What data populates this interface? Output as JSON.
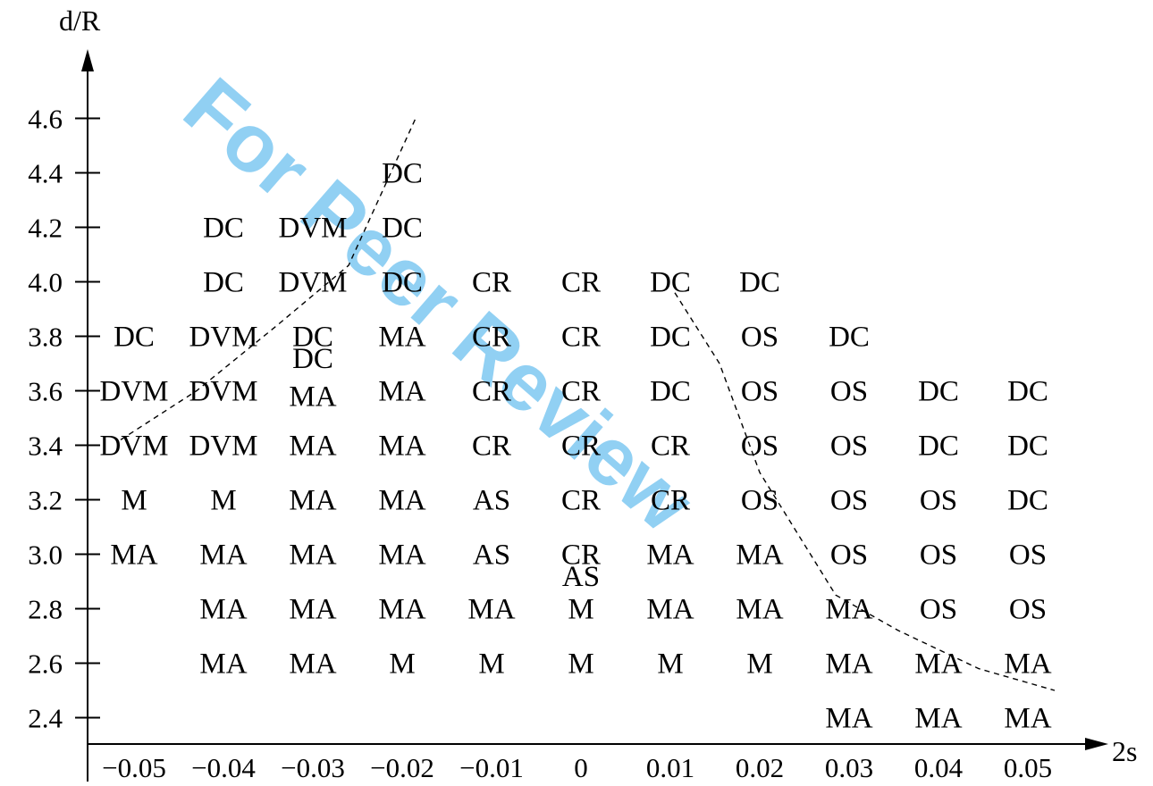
{
  "watermark": {
    "text": "For Peer Review",
    "color": "#7ec8f2"
  },
  "chart_data": {
    "type": "scatter",
    "xlabel": "2s",
    "ylabel": "d/R",
    "x_ticks": [
      "−0.05",
      "−0.04",
      "−0.03",
      "−0.02",
      "−0.01",
      "0",
      "0.01",
      "0.02",
      "0.03",
      "0.04",
      "0.05"
    ],
    "y_ticks": [
      "2.4",
      "2.6",
      "2.8",
      "3.0",
      "3.2",
      "3.4",
      "3.6",
      "3.8",
      "4.0",
      "4.2",
      "4.4",
      "4.6"
    ],
    "xlim": [
      -0.05,
      0.05
    ],
    "ylim": [
      2.3,
      4.7
    ],
    "grid": false,
    "points": [
      {
        "x": -0.05,
        "y": 3.8,
        "label": "DC"
      },
      {
        "x": -0.05,
        "y": 3.6,
        "label": "DVM"
      },
      {
        "x": -0.05,
        "y": 3.4,
        "label": "DVM"
      },
      {
        "x": -0.05,
        "y": 3.2,
        "label": "M"
      },
      {
        "x": -0.05,
        "y": 3.0,
        "label": "MA"
      },
      {
        "x": -0.04,
        "y": 4.2,
        "label": "DC"
      },
      {
        "x": -0.04,
        "y": 4.0,
        "label": "DC"
      },
      {
        "x": -0.04,
        "y": 3.8,
        "label": "DVM"
      },
      {
        "x": -0.04,
        "y": 3.6,
        "label": "DVM"
      },
      {
        "x": -0.04,
        "y": 3.4,
        "label": "DVM"
      },
      {
        "x": -0.04,
        "y": 3.2,
        "label": "M"
      },
      {
        "x": -0.04,
        "y": 3.0,
        "label": "MA"
      },
      {
        "x": -0.04,
        "y": 2.8,
        "label": "MA"
      },
      {
        "x": -0.04,
        "y": 2.6,
        "label": "MA"
      },
      {
        "x": -0.03,
        "y": 4.2,
        "label": "DVM"
      },
      {
        "x": -0.03,
        "y": 4.0,
        "label": "DVM"
      },
      {
        "x": -0.03,
        "y": 3.8,
        "label": "DC"
      },
      {
        "x": -0.03,
        "y": 3.72,
        "label": "DC"
      },
      {
        "x": -0.03,
        "y": 3.58,
        "label": "MA"
      },
      {
        "x": -0.03,
        "y": 3.4,
        "label": "MA"
      },
      {
        "x": -0.03,
        "y": 3.2,
        "label": "MA"
      },
      {
        "x": -0.03,
        "y": 3.0,
        "label": "MA"
      },
      {
        "x": -0.03,
        "y": 2.8,
        "label": "MA"
      },
      {
        "x": -0.03,
        "y": 2.6,
        "label": "MA"
      },
      {
        "x": -0.02,
        "y": 4.4,
        "label": "DC"
      },
      {
        "x": -0.02,
        "y": 4.2,
        "label": "DC"
      },
      {
        "x": -0.02,
        "y": 4.0,
        "label": "DC"
      },
      {
        "x": -0.02,
        "y": 3.8,
        "label": "MA"
      },
      {
        "x": -0.02,
        "y": 3.6,
        "label": "MA"
      },
      {
        "x": -0.02,
        "y": 3.4,
        "label": "MA"
      },
      {
        "x": -0.02,
        "y": 3.2,
        "label": "MA"
      },
      {
        "x": -0.02,
        "y": 3.0,
        "label": "MA"
      },
      {
        "x": -0.02,
        "y": 2.8,
        "label": "MA"
      },
      {
        "x": -0.02,
        "y": 2.6,
        "label": "M"
      },
      {
        "x": -0.01,
        "y": 4.0,
        "label": "CR"
      },
      {
        "x": -0.01,
        "y": 3.8,
        "label": "CR"
      },
      {
        "x": -0.01,
        "y": 3.6,
        "label": "CR"
      },
      {
        "x": -0.01,
        "y": 3.4,
        "label": "CR"
      },
      {
        "x": -0.01,
        "y": 3.2,
        "label": "AS"
      },
      {
        "x": -0.01,
        "y": 3.0,
        "label": "AS"
      },
      {
        "x": -0.01,
        "y": 2.8,
        "label": "MA"
      },
      {
        "x": -0.01,
        "y": 2.6,
        "label": "M"
      },
      {
        "x": 0,
        "y": 4.0,
        "label": "CR"
      },
      {
        "x": 0,
        "y": 3.8,
        "label": "CR"
      },
      {
        "x": 0,
        "y": 3.6,
        "label": "CR"
      },
      {
        "x": 0,
        "y": 3.4,
        "label": "CR"
      },
      {
        "x": 0,
        "y": 3.2,
        "label": "CR"
      },
      {
        "x": 0,
        "y": 3.0,
        "label": "CR"
      },
      {
        "x": 0,
        "y": 2.92,
        "label": "AS"
      },
      {
        "x": 0,
        "y": 2.8,
        "label": "M"
      },
      {
        "x": 0,
        "y": 2.6,
        "label": "M"
      },
      {
        "x": 0.01,
        "y": 4.0,
        "label": "DC"
      },
      {
        "x": 0.01,
        "y": 3.8,
        "label": "DC"
      },
      {
        "x": 0.01,
        "y": 3.6,
        "label": "DC"
      },
      {
        "x": 0.01,
        "y": 3.4,
        "label": "CR"
      },
      {
        "x": 0.01,
        "y": 3.2,
        "label": "CR"
      },
      {
        "x": 0.01,
        "y": 3.0,
        "label": "MA"
      },
      {
        "x": 0.01,
        "y": 2.8,
        "label": "MA"
      },
      {
        "x": 0.01,
        "y": 2.6,
        "label": "M"
      },
      {
        "x": 0.02,
        "y": 4.0,
        "label": "DC"
      },
      {
        "x": 0.02,
        "y": 3.8,
        "label": "OS"
      },
      {
        "x": 0.02,
        "y": 3.6,
        "label": "OS"
      },
      {
        "x": 0.02,
        "y": 3.4,
        "label": "OS"
      },
      {
        "x": 0.02,
        "y": 3.2,
        "label": "OS"
      },
      {
        "x": 0.02,
        "y": 3.0,
        "label": "MA"
      },
      {
        "x": 0.02,
        "y": 2.8,
        "label": "MA"
      },
      {
        "x": 0.02,
        "y": 2.6,
        "label": "M"
      },
      {
        "x": 0.03,
        "y": 3.8,
        "label": "DC"
      },
      {
        "x": 0.03,
        "y": 3.6,
        "label": "OS"
      },
      {
        "x": 0.03,
        "y": 3.4,
        "label": "OS"
      },
      {
        "x": 0.03,
        "y": 3.2,
        "label": "OS"
      },
      {
        "x": 0.03,
        "y": 3.0,
        "label": "OS"
      },
      {
        "x": 0.03,
        "y": 2.8,
        "label": "MA"
      },
      {
        "x": 0.03,
        "y": 2.6,
        "label": "MA"
      },
      {
        "x": 0.03,
        "y": 2.4,
        "label": "MA"
      },
      {
        "x": 0.04,
        "y": 3.6,
        "label": "DC"
      },
      {
        "x": 0.04,
        "y": 3.4,
        "label": "DC"
      },
      {
        "x": 0.04,
        "y": 3.2,
        "label": "OS"
      },
      {
        "x": 0.04,
        "y": 3.0,
        "label": "OS"
      },
      {
        "x": 0.04,
        "y": 2.8,
        "label": "OS"
      },
      {
        "x": 0.04,
        "y": 2.6,
        "label": "MA"
      },
      {
        "x": 0.04,
        "y": 2.4,
        "label": "MA"
      },
      {
        "x": 0.05,
        "y": 3.6,
        "label": "DC"
      },
      {
        "x": 0.05,
        "y": 3.4,
        "label": "DC"
      },
      {
        "x": 0.05,
        "y": 3.2,
        "label": "DC"
      },
      {
        "x": 0.05,
        "y": 3.0,
        "label": "OS"
      },
      {
        "x": 0.05,
        "y": 2.8,
        "label": "OS"
      },
      {
        "x": 0.05,
        "y": 2.6,
        "label": "MA"
      },
      {
        "x": 0.05,
        "y": 2.4,
        "label": "MA"
      }
    ],
    "boundaries": [
      {
        "style": "dashed",
        "points": [
          [
            -0.0515,
            3.42
          ],
          [
            -0.043,
            3.6
          ],
          [
            -0.034,
            3.84
          ],
          [
            -0.026,
            4.06
          ],
          [
            -0.0185,
            4.6
          ]
        ]
      },
      {
        "style": "dashed",
        "points": [
          [
            0.0105,
            3.96
          ],
          [
            0.0155,
            3.7
          ],
          [
            0.02,
            3.3
          ],
          [
            0.0285,
            2.85
          ],
          [
            0.0355,
            2.72
          ],
          [
            0.0445,
            2.58
          ],
          [
            0.053,
            2.5
          ]
        ]
      }
    ]
  }
}
